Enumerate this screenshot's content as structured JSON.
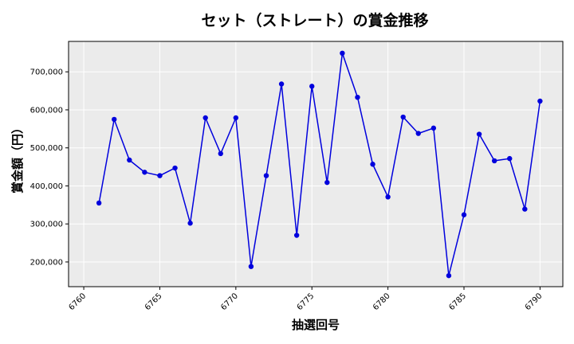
{
  "chart_data": {
    "type": "line",
    "title": "セット（ストレート）の賞金推移",
    "xlabel": "抽選回号",
    "ylabel": "賞金額（円）",
    "xlim": [
      6759.0,
      6791.5
    ],
    "ylim": [
      135000,
      780000
    ],
    "xticks": [
      6760,
      6765,
      6770,
      6775,
      6780,
      6785,
      6790
    ],
    "yticks": [
      200000,
      300000,
      400000,
      500000,
      600000,
      700000
    ],
    "ytick_labels": [
      "200,000",
      "300,000",
      "400,000",
      "500,000",
      "600,000",
      "700,000"
    ],
    "grid": true,
    "colors": {
      "line": "#0000dd",
      "marker": "#0000dd",
      "plot_bg": "#ebebeb",
      "grid": "#ffffff"
    },
    "series": [
      {
        "x": [
          6761,
          6762,
          6763,
          6764,
          6765,
          6766,
          6767,
          6768,
          6769,
          6770,
          6771,
          6772,
          6773,
          6774,
          6775,
          6776,
          6777,
          6778,
          6779,
          6780,
          6781,
          6782,
          6783,
          6784,
          6785,
          6786,
          6787,
          6788,
          6789,
          6790
        ],
        "values": [
          355000,
          575000,
          468000,
          436000,
          427000,
          447000,
          302000,
          579000,
          485000,
          579000,
          188000,
          427000,
          668000,
          270000,
          662000,
          409000,
          749000,
          633000,
          457000,
          371000,
          581000,
          538000,
          552000,
          164000,
          324000,
          536000,
          466000,
          472000,
          339000,
          623000
        ]
      }
    ]
  }
}
